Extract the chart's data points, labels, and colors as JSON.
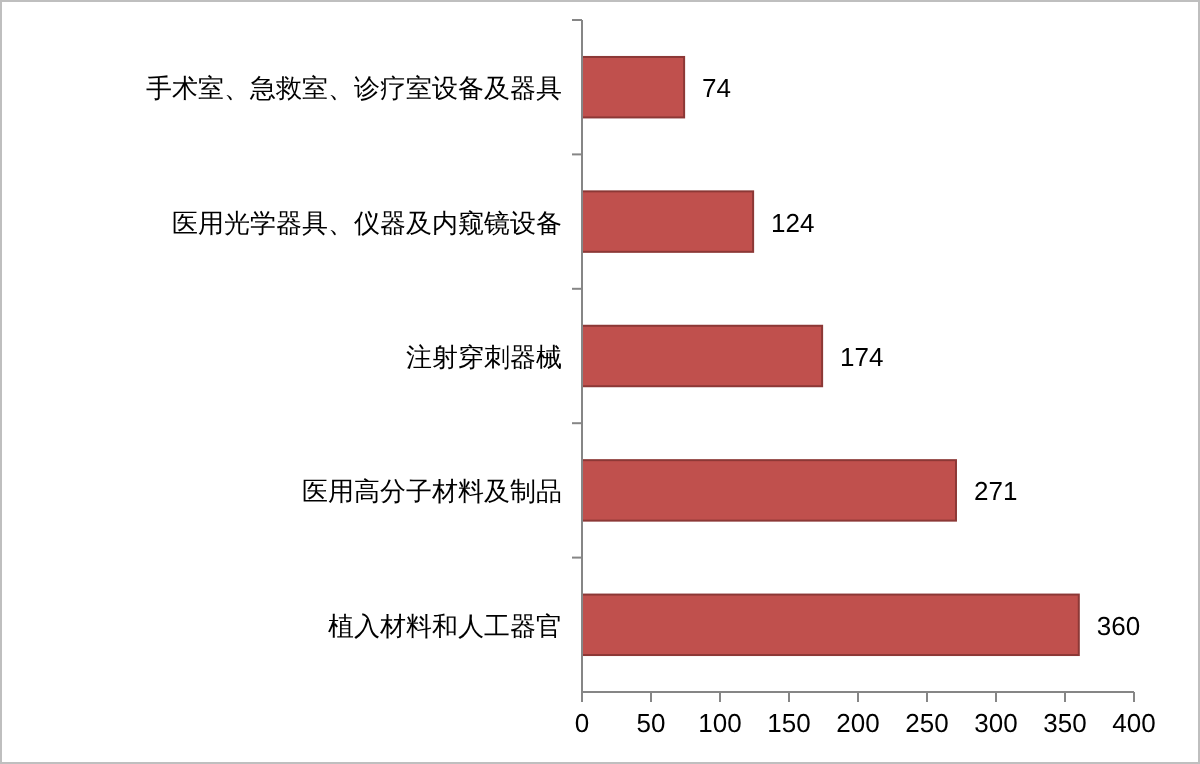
{
  "chart_data": {
    "type": "bar",
    "orientation": "horizontal",
    "categories": [
      "手术室、急救室、诊疗室设备及器具",
      "医用光学器具、仪器及内窥镜设备",
      "注射穿刺器械",
      "医用高分子材料及制品",
      "植入材料和人工器官"
    ],
    "values": [
      74,
      124,
      174,
      271,
      360
    ],
    "color": "#c0504d",
    "xlim": [
      0,
      400
    ],
    "xticks": [
      0,
      50,
      100,
      150,
      200,
      250,
      300,
      350,
      400
    ],
    "data_labels": true
  }
}
